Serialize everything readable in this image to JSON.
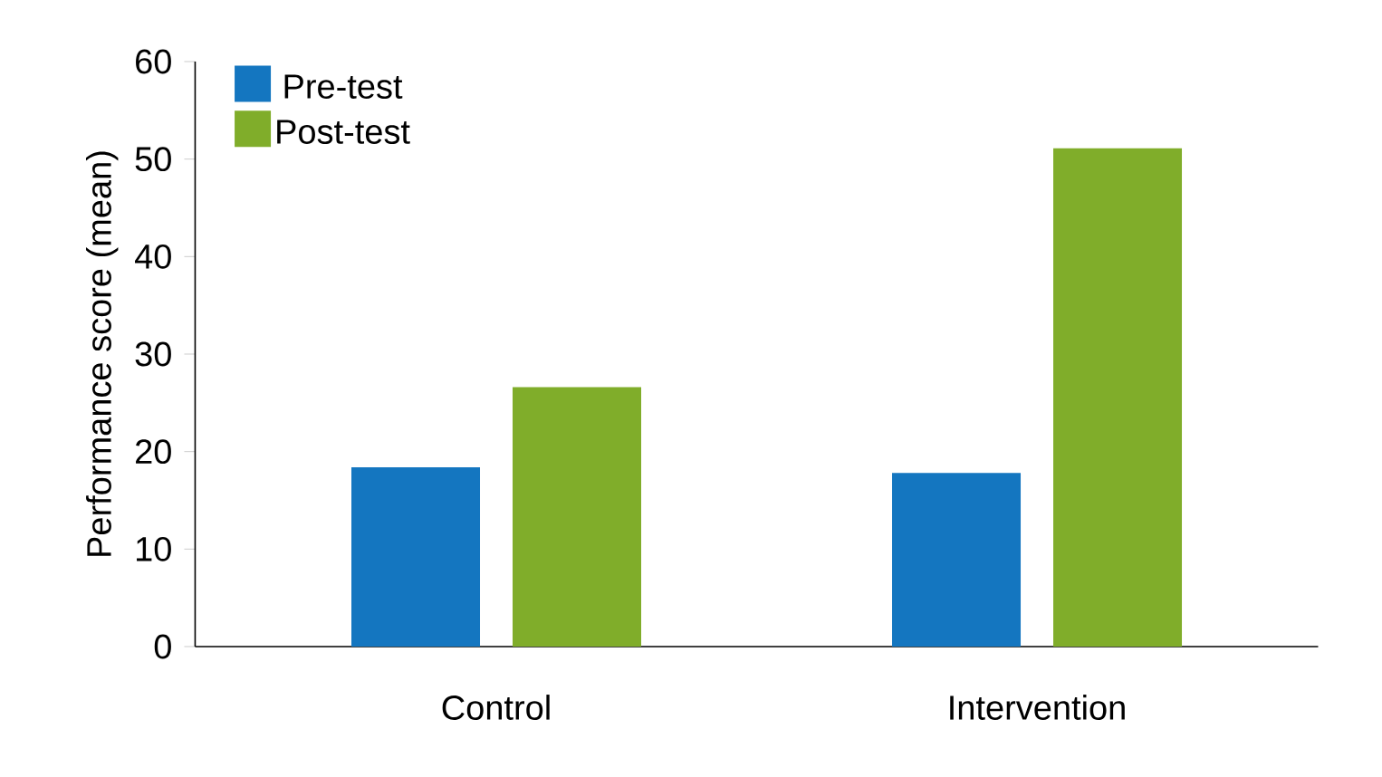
{
  "chart_data": {
    "type": "bar",
    "ylabel": "Performance score (mean)",
    "categories": [
      "Control",
      "Intervention"
    ],
    "series": [
      {
        "name": "Pre-test",
        "color": "#1476c0",
        "values": [
          18.4,
          17.8
        ]
      },
      {
        "name": "Post-test",
        "color": "#80ad2a",
        "values": [
          26.6,
          51.1
        ]
      }
    ],
    "ylim": [
      0,
      60
    ],
    "yticks": [
      0,
      10,
      20,
      30,
      40,
      50,
      60
    ],
    "grid": false,
    "legend": "top left"
  }
}
